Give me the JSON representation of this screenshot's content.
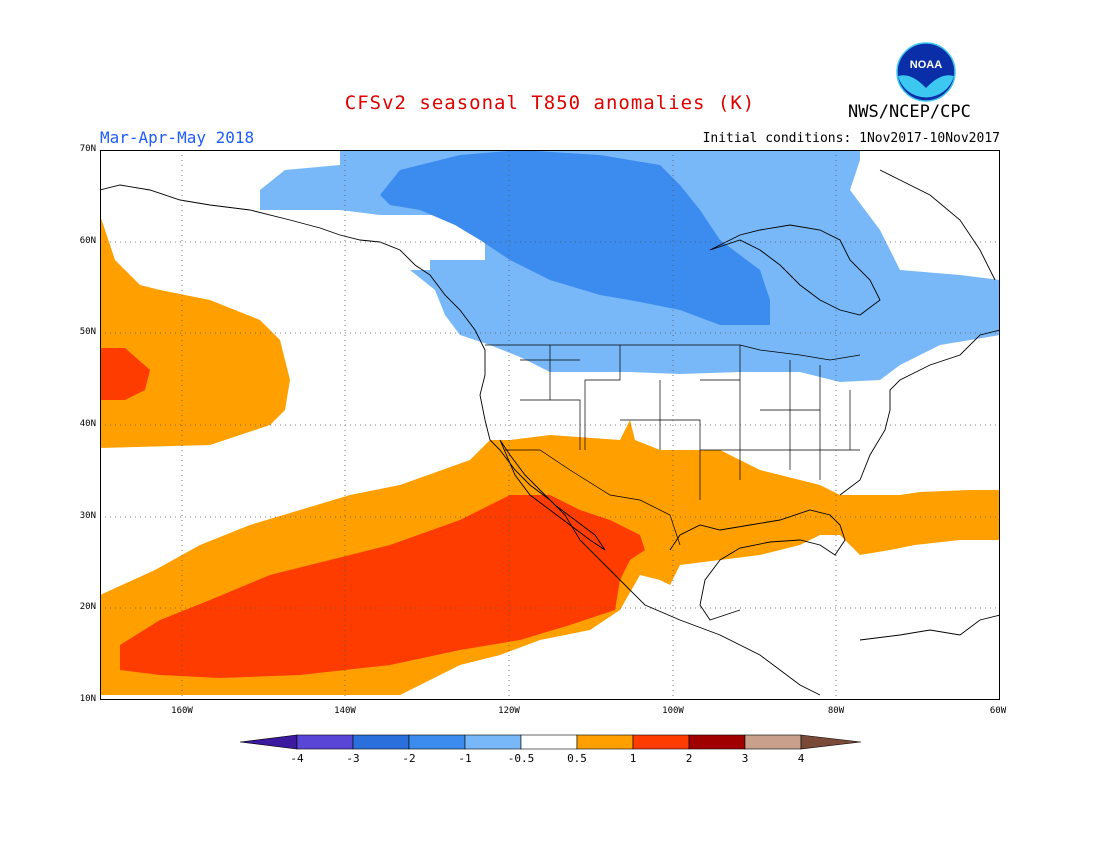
{
  "header": {
    "title": "CFSv2 seasonal T850 anomalies (K)",
    "organization": "NWS/NCEP/CPC",
    "season": "Mar-Apr-May 2018",
    "initial_conditions": "Initial conditions: 1Nov2017-10Nov2017",
    "logo_text": "NOAA"
  },
  "map": {
    "region": "North America and eastern Pacific",
    "lat_range": [
      10,
      70
    ],
    "lon_range": [
      -170,
      -60
    ],
    "lat_labels": [
      "70N",
      "60N",
      "50N",
      "40N",
      "30N",
      "20N",
      "10N"
    ],
    "lon_labels": [
      "160W",
      "140W",
      "120W",
      "100W",
      "80W",
      "60W"
    ]
  },
  "colorbar": {
    "labels": [
      "-4",
      "-3",
      "-2",
      "-1",
      "-0.5",
      "0.5",
      "1",
      "2",
      "3",
      "4"
    ],
    "colors": [
      "#3c1aa0",
      "#5a46d6",
      "#2a6fdc",
      "#3c8cf0",
      "#78b8f8",
      "#ffffff",
      "#ffa000",
      "#ff3c00",
      "#a00000",
      "#c8a08c",
      "#7a4a38"
    ]
  },
  "anomaly_colors": {
    "neg_0_5_1": "#78b8f8",
    "neg_1_2": "#3c8cf0",
    "pos_0_5_1": "#ffa000",
    "pos_1_2": "#ff3c00"
  }
}
